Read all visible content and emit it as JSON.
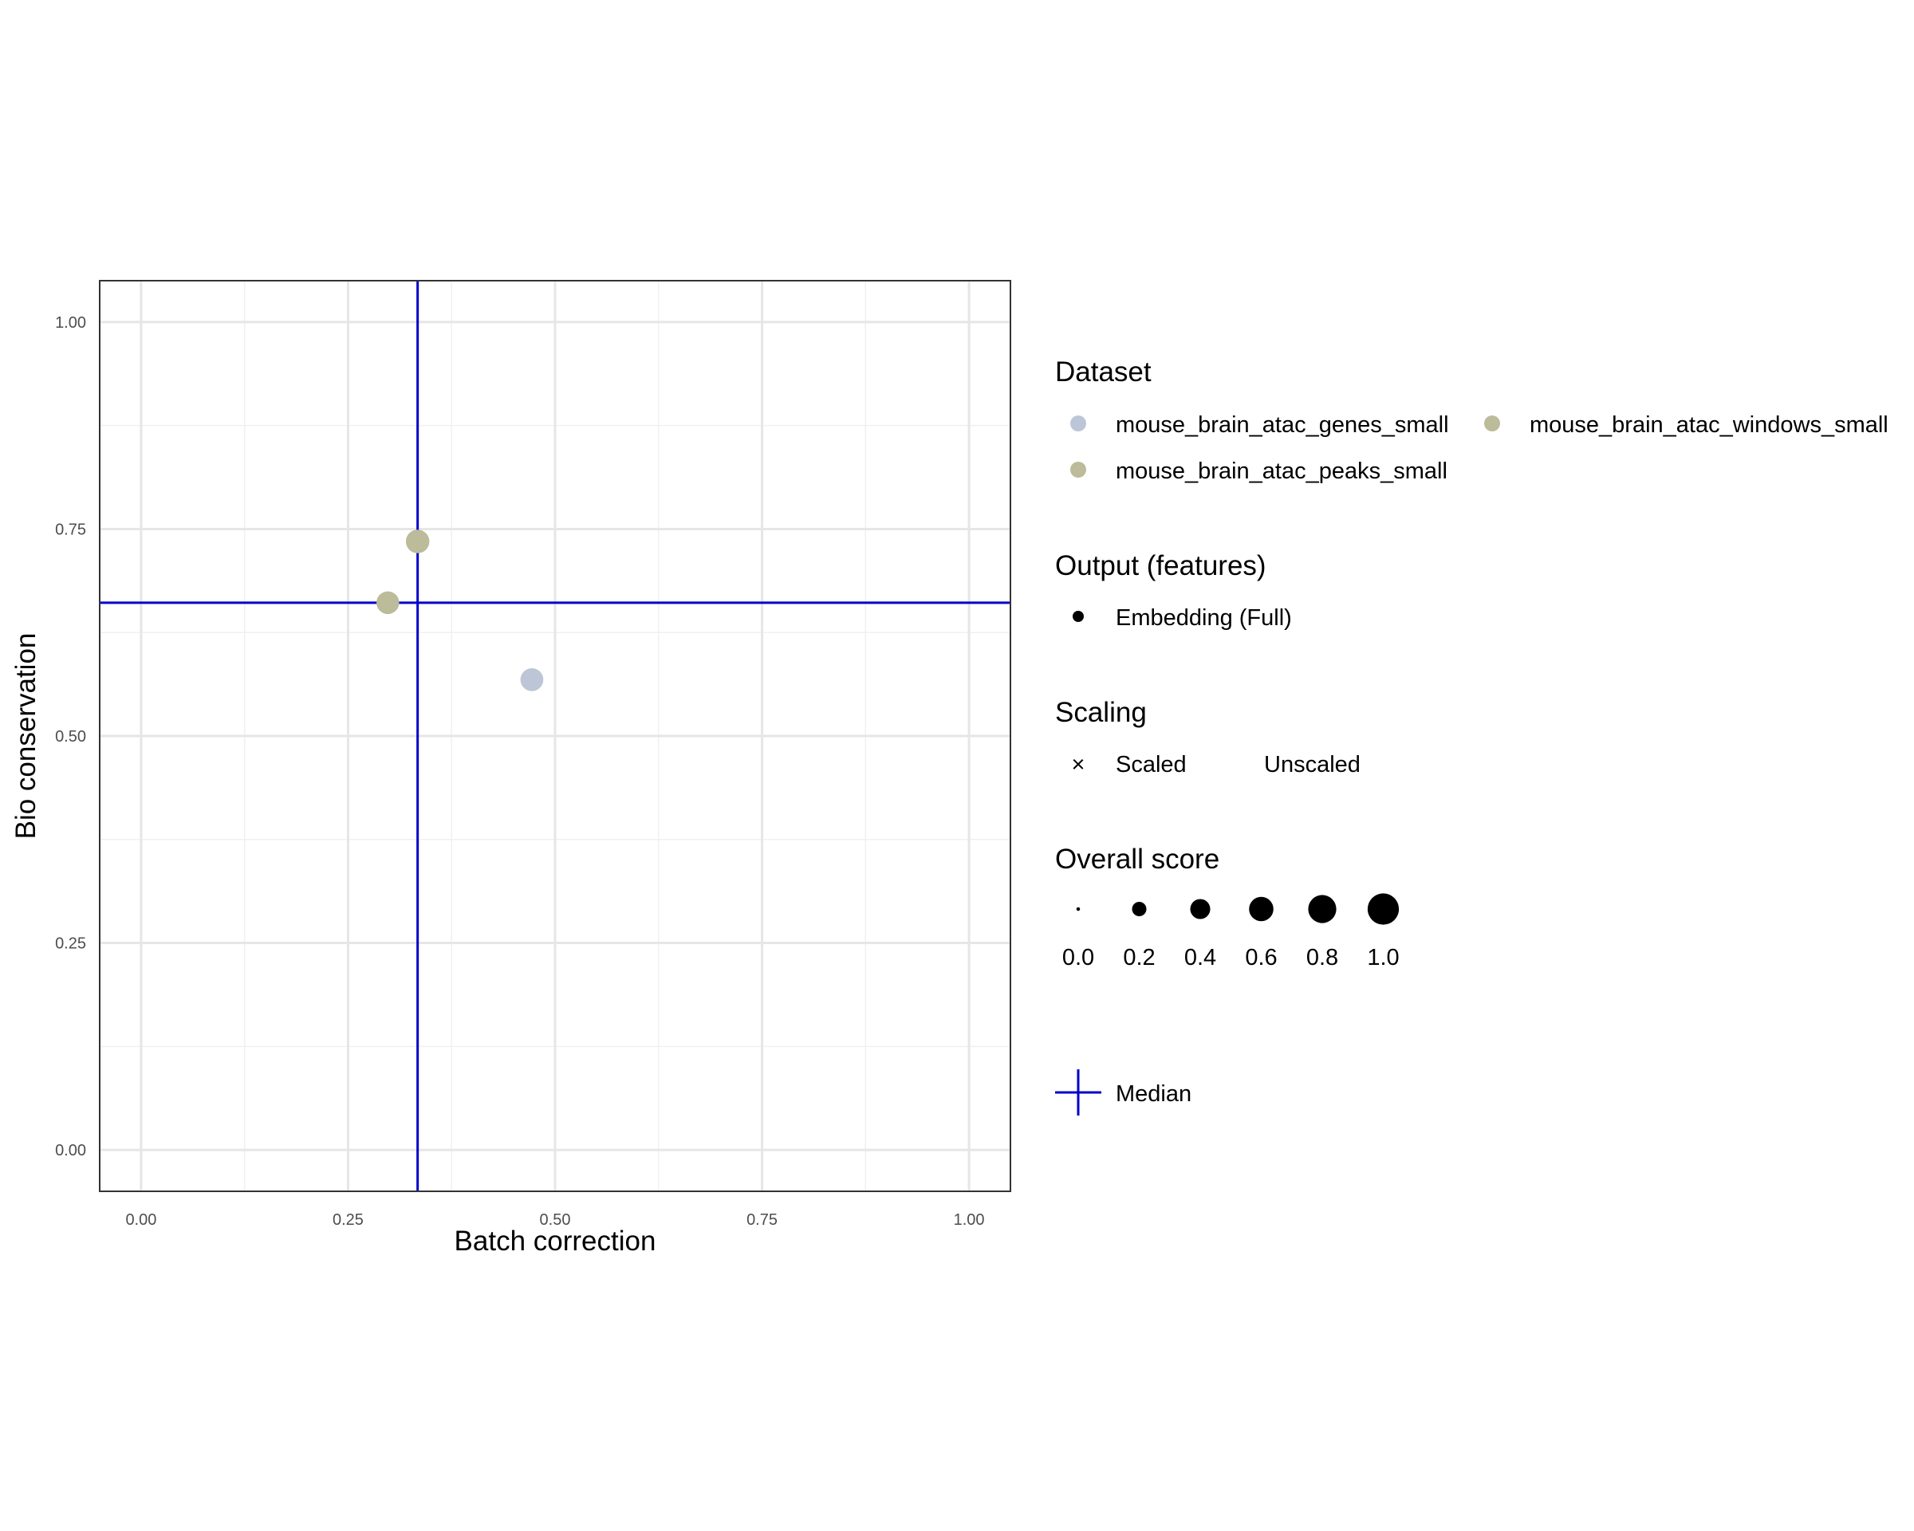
{
  "chart_data": {
    "type": "scatter",
    "xlabel": "Batch correction",
    "ylabel": "Bio conservation",
    "xlim": [
      -0.05,
      1.05
    ],
    "ylim": [
      -0.05,
      1.05
    ],
    "x_ticks": [
      "0.00",
      "0.25",
      "0.50",
      "0.75",
      "1.00"
    ],
    "y_ticks": [
      "0.00",
      "0.25",
      "0.50",
      "0.75",
      "1.00"
    ],
    "grid": true,
    "series": [
      {
        "name": "mouse_brain_atac_genes_small",
        "color": "#bcc6d6",
        "points": [
          {
            "x": 0.472,
            "y": 0.568,
            "overall_score": 0.53
          }
        ]
      },
      {
        "name": "mouse_brain_atac_peaks_small",
        "color": "#bcbb9a",
        "points": [
          {
            "x": 0.298,
            "y": 0.661,
            "overall_score": 0.52
          }
        ]
      },
      {
        "name": "mouse_brain_atac_windows_small",
        "color": "#bcbb9a",
        "points": [
          {
            "x": 0.334,
            "y": 0.735,
            "overall_score": 0.56
          }
        ]
      }
    ],
    "median": {
      "x": 0.334,
      "y": 0.661,
      "color": "#0000cc"
    }
  },
  "legend": {
    "dataset": {
      "title": "Dataset",
      "items": [
        {
          "label": "mouse_brain_atac_genes_small",
          "color": "#bcc6d6"
        },
        {
          "label": "mouse_brain_atac_windows_small",
          "color": "#bcbb9a"
        },
        {
          "label": "mouse_brain_atac_peaks_small",
          "color": "#bcbb9a"
        }
      ]
    },
    "output": {
      "title": "Output (features)",
      "items": [
        {
          "label": "Embedding (Full)"
        }
      ]
    },
    "scaling": {
      "title": "Scaling",
      "items": [
        {
          "label": "Scaled",
          "symbol": "×"
        },
        {
          "label": "Unscaled",
          "symbol": ""
        }
      ]
    },
    "overall_score": {
      "title": "Overall score",
      "items": [
        {
          "label": "0.0",
          "value": 0.0
        },
        {
          "label": "0.2",
          "value": 0.2
        },
        {
          "label": "0.4",
          "value": 0.4
        },
        {
          "label": "0.6",
          "value": 0.6
        },
        {
          "label": "0.8",
          "value": 0.8
        },
        {
          "label": "1.0",
          "value": 1.0
        }
      ]
    },
    "median": {
      "label": "Median"
    }
  }
}
